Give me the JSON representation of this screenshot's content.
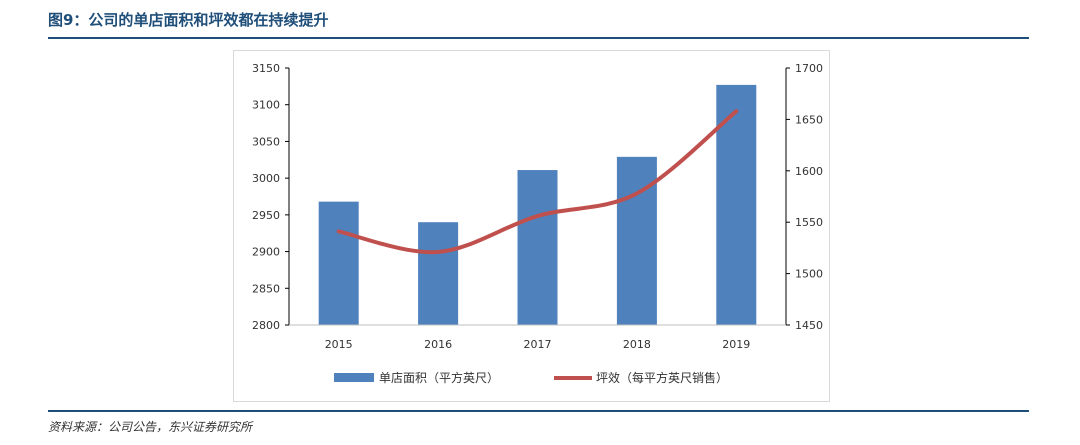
{
  "figure": {
    "title": "图9：公司的单店面积和坪效都在持续提升",
    "source": "资料来源：公司公告，东兴证券研究所"
  },
  "colors": {
    "bar": "#4f81bd",
    "line": "#c0504d",
    "title": "#1f4e79",
    "axis": "#000000"
  },
  "chart_data": {
    "type": "bar",
    "categories": [
      "2015",
      "2016",
      "2017",
      "2018",
      "2019"
    ],
    "series": [
      {
        "name": "单店面积（平方英尺）",
        "type": "bar",
        "axis": "left",
        "values": [
          2968,
          2940,
          3011,
          3029,
          3127
        ]
      },
      {
        "name": "坪效（每平方英尺销售）",
        "type": "line",
        "axis": "right",
        "values": [
          1541,
          1521,
          1556,
          1578,
          1658
        ]
      }
    ],
    "y_left": {
      "lim": [
        2800,
        3150
      ],
      "ticks": [
        "2800",
        "2850",
        "2900",
        "2950",
        "3000",
        "3050",
        "3100",
        "3150"
      ]
    },
    "y_right": {
      "lim": [
        1450,
        1700
      ],
      "ticks": [
        "1450",
        "1500",
        "1550",
        "1600",
        "1650",
        "1700"
      ]
    },
    "grid": false,
    "legend": "bottom"
  }
}
